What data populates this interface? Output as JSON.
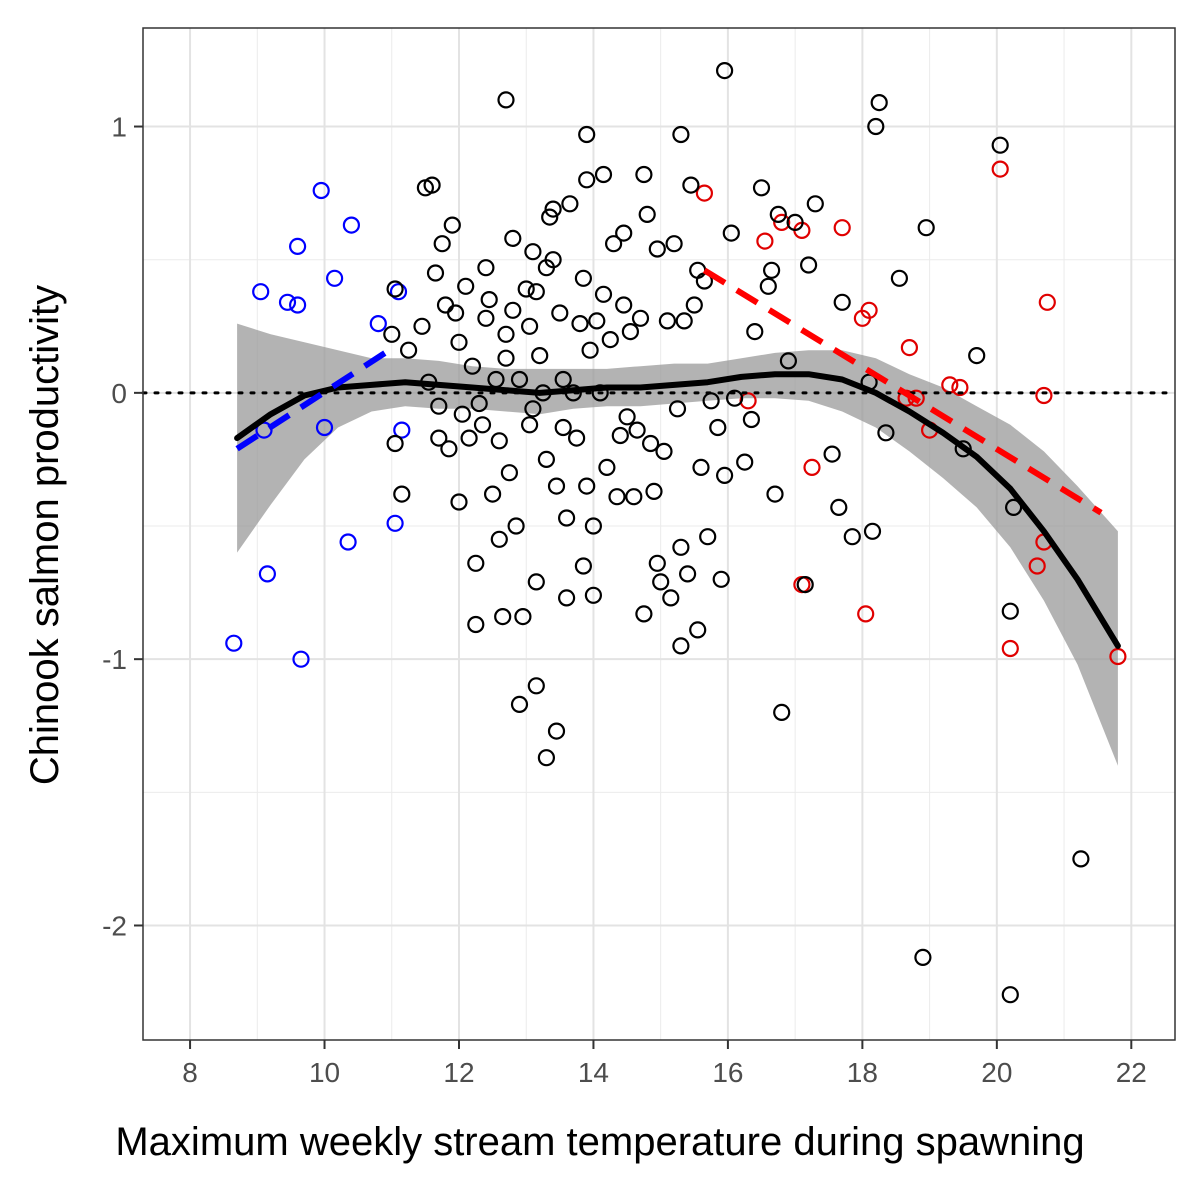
{
  "chart_data": {
    "type": "scatter",
    "title": "",
    "xlabel": "Maximum weekly stream temperature during spawning",
    "ylabel": "Chinook salmon productivity",
    "xlim": [
      7.3,
      22.65
    ],
    "ylim": [
      -2.43,
      1.37
    ],
    "x_ticks": [
      8,
      10,
      12,
      14,
      16,
      18,
      20,
      22
    ],
    "x_tick_labels": [
      "8",
      "10",
      "12",
      "14",
      "16",
      "18",
      "20",
      "22"
    ],
    "y_ticks": [
      -2,
      -1,
      0,
      1
    ],
    "y_tick_labels": [
      "-2",
      "-1",
      "0",
      "1"
    ],
    "grid": true,
    "theme": "bw",
    "reference_line": {
      "y": 0,
      "style": "dotted",
      "color": "#000000"
    },
    "colors": {
      "cool_points": "#0000ff",
      "warm_points": "#e00000",
      "other_points": "#000000",
      "smooth_line": "#000000",
      "confidence_band": "#999999",
      "cool_trend": "#0000ff",
      "warm_trend": "#ff0000"
    },
    "series": [
      {
        "group": "cool",
        "points": [
          [
            8.65,
            -0.94
          ],
          [
            9.05,
            0.38
          ],
          [
            9.1,
            -0.14
          ],
          [
            9.15,
            -0.68
          ],
          [
            9.45,
            0.34
          ],
          [
            9.6,
            0.33
          ],
          [
            9.6,
            0.55
          ],
          [
            9.65,
            -1.0
          ],
          [
            9.95,
            0.76
          ],
          [
            10.0,
            -0.13
          ],
          [
            10.15,
            0.43
          ],
          [
            10.35,
            -0.56
          ],
          [
            10.4,
            0.63
          ],
          [
            10.8,
            0.26
          ],
          [
            11.05,
            -0.49
          ],
          [
            11.1,
            0.38
          ],
          [
            11.15,
            -0.14
          ]
        ]
      },
      {
        "group": "warm",
        "points": [
          [
            15.65,
            0.75
          ],
          [
            16.55,
            0.57
          ],
          [
            16.8,
            0.64
          ],
          [
            17.1,
            0.61
          ],
          [
            17.1,
            -0.72
          ],
          [
            17.25,
            -0.28
          ],
          [
            17.7,
            0.62
          ],
          [
            18.0,
            0.28
          ],
          [
            18.1,
            0.31
          ],
          [
            18.05,
            -0.83
          ],
          [
            18.7,
            0.17
          ],
          [
            18.65,
            -0.02
          ],
          [
            18.8,
            -0.02
          ],
          [
            19.0,
            -0.14
          ],
          [
            19.3,
            0.03
          ],
          [
            19.45,
            0.02
          ],
          [
            20.05,
            0.84
          ],
          [
            20.2,
            -0.96
          ],
          [
            20.6,
            -0.65
          ],
          [
            20.7,
            -0.56
          ],
          [
            20.7,
            -0.01
          ],
          [
            20.75,
            0.34
          ],
          [
            21.8,
            -0.99
          ],
          [
            16.3,
            -0.03
          ]
        ]
      },
      {
        "group": "other",
        "points": [
          [
            11.0,
            0.22
          ],
          [
            11.05,
            0.39
          ],
          [
            11.05,
            -0.19
          ],
          [
            11.15,
            -0.38
          ],
          [
            11.25,
            0.16
          ],
          [
            11.45,
            0.25
          ],
          [
            11.5,
            0.77
          ],
          [
            11.6,
            0.78
          ],
          [
            11.65,
            0.45
          ],
          [
            11.7,
            -0.17
          ],
          [
            11.75,
            0.56
          ],
          [
            11.8,
            0.33
          ],
          [
            11.85,
            -0.21
          ],
          [
            11.9,
            0.63
          ],
          [
            11.95,
            0.3
          ],
          [
            12.0,
            0.19
          ],
          [
            12.0,
            -0.41
          ],
          [
            12.05,
            -0.08
          ],
          [
            12.1,
            0.4
          ],
          [
            12.15,
            -0.17
          ],
          [
            12.2,
            0.1
          ],
          [
            12.25,
            -0.64
          ],
          [
            12.25,
            -0.87
          ],
          [
            12.3,
            -0.04
          ],
          [
            12.35,
            -0.12
          ],
          [
            12.4,
            0.28
          ],
          [
            12.4,
            0.47
          ],
          [
            12.45,
            0.35
          ],
          [
            12.5,
            -0.38
          ],
          [
            12.55,
            0.05
          ],
          [
            12.6,
            -0.18
          ],
          [
            12.6,
            -0.55
          ],
          [
            12.65,
            -0.84
          ],
          [
            12.7,
            0.13
          ],
          [
            12.7,
            0.22
          ],
          [
            12.75,
            -0.3
          ],
          [
            12.8,
            0.58
          ],
          [
            12.8,
            0.31
          ],
          [
            12.85,
            -0.5
          ],
          [
            12.9,
            0.05
          ],
          [
            12.9,
            -1.17
          ],
          [
            12.95,
            -0.84
          ],
          [
            13.0,
            0.39
          ],
          [
            13.05,
            0.25
          ],
          [
            13.05,
            -0.12
          ],
          [
            13.1,
            0.53
          ],
          [
            13.1,
            -0.06
          ],
          [
            13.15,
            0.38
          ],
          [
            13.15,
            -0.71
          ],
          [
            13.15,
            -1.1
          ],
          [
            13.2,
            0.14
          ],
          [
            13.25,
            0.0
          ],
          [
            13.3,
            0.47
          ],
          [
            13.3,
            -0.25
          ],
          [
            13.3,
            -1.37
          ],
          [
            13.35,
            0.66
          ],
          [
            13.4,
            0.69
          ],
          [
            13.4,
            0.5
          ],
          [
            13.45,
            -0.35
          ],
          [
            13.45,
            -1.27
          ],
          [
            13.5,
            0.3
          ],
          [
            13.55,
            0.05
          ],
          [
            13.55,
            -0.13
          ],
          [
            13.6,
            -0.47
          ],
          [
            13.6,
            -0.77
          ],
          [
            13.65,
            0.71
          ],
          [
            13.7,
            0.0
          ],
          [
            13.75,
            -0.17
          ],
          [
            13.8,
            0.26
          ],
          [
            13.85,
            0.43
          ],
          [
            13.85,
            -0.65
          ],
          [
            13.9,
            0.97
          ],
          [
            13.9,
            0.8
          ],
          [
            13.9,
            -0.35
          ],
          [
            13.95,
            0.16
          ],
          [
            14.0,
            -0.5
          ],
          [
            14.0,
            -0.76
          ],
          [
            14.05,
            0.27
          ],
          [
            14.1,
            0.0
          ],
          [
            14.15,
            0.82
          ],
          [
            14.15,
            0.37
          ],
          [
            14.2,
            -0.28
          ],
          [
            14.25,
            0.2
          ],
          [
            14.3,
            0.56
          ],
          [
            14.35,
            -0.39
          ],
          [
            14.4,
            -0.16
          ],
          [
            14.45,
            0.6
          ],
          [
            14.45,
            0.33
          ],
          [
            14.5,
            -0.09
          ],
          [
            14.55,
            0.23
          ],
          [
            14.6,
            -0.39
          ],
          [
            14.65,
            -0.14
          ],
          [
            14.7,
            0.28
          ],
          [
            14.75,
            0.82
          ],
          [
            14.75,
            -0.83
          ],
          [
            14.8,
            0.67
          ],
          [
            14.85,
            -0.19
          ],
          [
            14.9,
            -0.37
          ],
          [
            14.95,
            0.54
          ],
          [
            14.95,
            -0.64
          ],
          [
            15.0,
            -0.71
          ],
          [
            15.05,
            -0.22
          ],
          [
            15.1,
            0.27
          ],
          [
            15.15,
            -0.77
          ],
          [
            15.2,
            0.56
          ],
          [
            15.25,
            -0.06
          ],
          [
            15.3,
            0.97
          ],
          [
            15.3,
            -0.58
          ],
          [
            15.3,
            -0.95
          ],
          [
            15.35,
            0.27
          ],
          [
            15.4,
            -0.68
          ],
          [
            15.45,
            0.78
          ],
          [
            15.5,
            0.33
          ],
          [
            15.55,
            0.46
          ],
          [
            15.55,
            -0.89
          ],
          [
            15.6,
            -0.28
          ],
          [
            15.65,
            0.42
          ],
          [
            15.7,
            -0.54
          ],
          [
            15.75,
            -0.03
          ],
          [
            15.85,
            -0.13
          ],
          [
            15.9,
            -0.7
          ],
          [
            15.95,
            -0.31
          ],
          [
            15.95,
            1.21
          ],
          [
            16.05,
            0.6
          ],
          [
            16.1,
            -0.02
          ],
          [
            16.25,
            -0.26
          ],
          [
            16.35,
            -0.1
          ],
          [
            16.4,
            0.23
          ],
          [
            16.5,
            0.77
          ],
          [
            16.6,
            0.4
          ],
          [
            16.65,
            0.46
          ],
          [
            16.7,
            -0.38
          ],
          [
            16.75,
            0.67
          ],
          [
            16.8,
            -1.2
          ],
          [
            16.9,
            0.12
          ],
          [
            17.0,
            0.64
          ],
          [
            17.15,
            -0.72
          ],
          [
            17.2,
            0.48
          ],
          [
            17.3,
            0.71
          ],
          [
            17.55,
            -0.23
          ],
          [
            17.65,
            -0.43
          ],
          [
            17.7,
            0.34
          ],
          [
            17.85,
            -0.54
          ],
          [
            18.1,
            0.04
          ],
          [
            18.15,
            -0.52
          ],
          [
            18.2,
            1.0
          ],
          [
            18.25,
            1.09
          ],
          [
            18.35,
            -0.15
          ],
          [
            18.55,
            0.43
          ],
          [
            18.9,
            -2.12
          ],
          [
            18.95,
            0.62
          ],
          [
            19.5,
            -0.21
          ],
          [
            19.7,
            0.14
          ],
          [
            20.05,
            0.93
          ],
          [
            20.2,
            -0.82
          ],
          [
            20.2,
            -2.26
          ],
          [
            20.25,
            -0.43
          ],
          [
            21.25,
            -1.75
          ],
          [
            12.7,
            1.1
          ],
          [
            11.55,
            0.04
          ],
          [
            11.7,
            -0.05
          ]
        ]
      }
    ],
    "smooth_fit": {
      "method": "loess",
      "x": [
        8.7,
        9.2,
        9.7,
        10.2,
        10.7,
        11.2,
        11.7,
        12.2,
        12.7,
        13.2,
        13.7,
        14.2,
        14.7,
        15.2,
        15.7,
        16.2,
        16.7,
        17.2,
        17.7,
        18.2,
        18.7,
        19.2,
        19.7,
        20.2,
        20.7,
        21.2,
        21.8
      ],
      "y": [
        -0.17,
        -0.08,
        -0.01,
        0.02,
        0.03,
        0.04,
        0.03,
        0.02,
        0.01,
        0.0,
        0.01,
        0.02,
        0.02,
        0.03,
        0.04,
        0.06,
        0.07,
        0.07,
        0.05,
        0.0,
        -0.07,
        -0.15,
        -0.24,
        -0.36,
        -0.52,
        -0.7,
        -0.95
      ],
      "ci_lower": [
        -0.6,
        -0.42,
        -0.25,
        -0.13,
        -0.07,
        -0.05,
        -0.06,
        -0.06,
        -0.07,
        -0.08,
        -0.06,
        -0.05,
        -0.05,
        -0.04,
        -0.03,
        -0.02,
        -0.02,
        -0.03,
        -0.07,
        -0.13,
        -0.22,
        -0.32,
        -0.43,
        -0.58,
        -0.78,
        -1.02,
        -1.4
      ],
      "ci_upper": [
        0.26,
        0.22,
        0.19,
        0.16,
        0.13,
        0.13,
        0.12,
        0.1,
        0.09,
        0.09,
        0.09,
        0.09,
        0.1,
        0.11,
        0.11,
        0.13,
        0.15,
        0.16,
        0.16,
        0.13,
        0.07,
        0.02,
        -0.05,
        -0.12,
        -0.22,
        -0.35,
        -0.52
      ]
    },
    "trend_lines": [
      {
        "group": "cool",
        "style": "dashed",
        "x": [
          8.7,
          10.9
        ],
        "y": [
          -0.21,
          0.15
        ]
      },
      {
        "group": "warm",
        "style": "dashed",
        "x": [
          15.65,
          21.55
        ],
        "y": [
          0.46,
          -0.45
        ]
      }
    ]
  }
}
